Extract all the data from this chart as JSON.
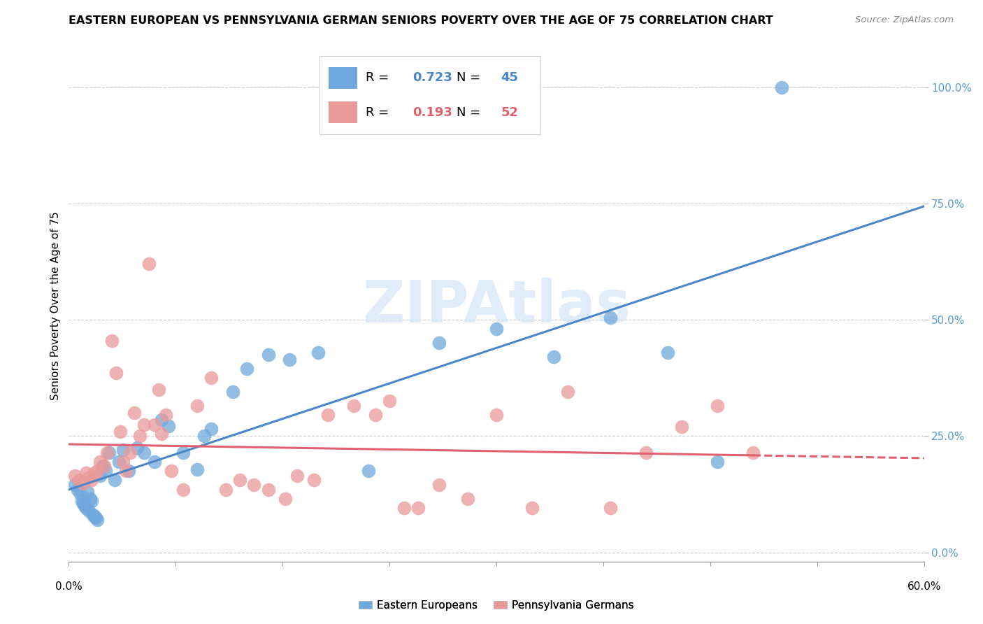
{
  "title": "EASTERN EUROPEAN VS PENNSYLVANIA GERMAN SENIORS POVERTY OVER THE AGE OF 75 CORRELATION CHART",
  "source": "Source: ZipAtlas.com",
  "ylabel": "Seniors Poverty Over the Age of 75",
  "xlim": [
    0.0,
    0.6
  ],
  "ylim": [
    -0.02,
    1.08
  ],
  "yticks": [
    0.0,
    0.25,
    0.5,
    0.75,
    1.0
  ],
  "ytick_labels": [
    "0.0%",
    "25.0%",
    "50.0%",
    "75.0%",
    "100.0%"
  ],
  "blue_R": 0.723,
  "blue_N": 45,
  "pink_R": 0.193,
  "pink_N": 52,
  "blue_color": "#6fa8dc",
  "pink_color": "#ea9999",
  "blue_line_color": "#4a86c8",
  "pink_line_color": "#e06070",
  "blue_points_x": [
    0.004,
    0.006,
    0.008,
    0.009,
    0.01,
    0.011,
    0.012,
    0.013,
    0.014,
    0.015,
    0.016,
    0.017,
    0.018,
    0.019,
    0.02,
    0.022,
    0.024,
    0.026,
    0.028,
    0.032,
    0.035,
    0.038,
    0.042,
    0.048,
    0.053,
    0.06,
    0.065,
    0.07,
    0.08,
    0.09,
    0.095,
    0.1,
    0.115,
    0.125,
    0.14,
    0.155,
    0.175,
    0.21,
    0.26,
    0.3,
    0.34,
    0.38,
    0.42,
    0.455,
    0.5
  ],
  "blue_points_y": [
    0.145,
    0.135,
    0.125,
    0.11,
    0.105,
    0.1,
    0.095,
    0.13,
    0.09,
    0.115,
    0.11,
    0.08,
    0.078,
    0.075,
    0.07,
    0.165,
    0.185,
    0.175,
    0.215,
    0.155,
    0.195,
    0.22,
    0.175,
    0.225,
    0.215,
    0.195,
    0.285,
    0.272,
    0.215,
    0.178,
    0.25,
    0.265,
    0.345,
    0.395,
    0.425,
    0.415,
    0.43,
    0.175,
    0.45,
    0.48,
    0.42,
    0.505,
    0.43,
    0.195,
    1.0
  ],
  "pink_points_x": [
    0.004,
    0.007,
    0.01,
    0.012,
    0.014,
    0.016,
    0.018,
    0.02,
    0.022,
    0.025,
    0.027,
    0.03,
    0.033,
    0.036,
    0.038,
    0.04,
    0.043,
    0.046,
    0.05,
    0.053,
    0.056,
    0.06,
    0.063,
    0.065,
    0.068,
    0.072,
    0.08,
    0.09,
    0.1,
    0.11,
    0.12,
    0.13,
    0.14,
    0.152,
    0.16,
    0.172,
    0.182,
    0.2,
    0.215,
    0.225,
    0.235,
    0.245,
    0.26,
    0.28,
    0.3,
    0.325,
    0.35,
    0.38,
    0.405,
    0.43,
    0.455,
    0.48
  ],
  "pink_points_y": [
    0.165,
    0.155,
    0.148,
    0.17,
    0.16,
    0.155,
    0.17,
    0.175,
    0.195,
    0.185,
    0.215,
    0.455,
    0.385,
    0.26,
    0.195,
    0.175,
    0.215,
    0.3,
    0.25,
    0.275,
    0.62,
    0.275,
    0.35,
    0.255,
    0.295,
    0.175,
    0.135,
    0.315,
    0.375,
    0.135,
    0.155,
    0.145,
    0.135,
    0.115,
    0.165,
    0.155,
    0.295,
    0.315,
    0.295,
    0.325,
    0.095,
    0.095,
    0.145,
    0.115,
    0.295,
    0.095,
    0.345,
    0.095,
    0.215,
    0.27,
    0.315,
    0.215
  ]
}
